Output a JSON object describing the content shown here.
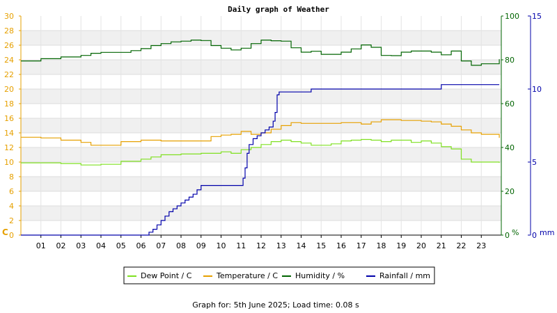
{
  "chart_data": {
    "type": "line",
    "title": "Daily graph of Weather",
    "x_ticks": [
      "01",
      "02",
      "03",
      "04",
      "05",
      "06",
      "07",
      "08",
      "09",
      "10",
      "11",
      "12",
      "13",
      "14",
      "15",
      "16",
      "17",
      "18",
      "19",
      "20",
      "21",
      "22",
      "23"
    ],
    "xlim": [
      0,
      24
    ],
    "axes": {
      "left": {
        "unit": "C",
        "ylim": [
          0,
          30
        ],
        "ticks": [
          "0",
          "2",
          "4",
          "6",
          "8",
          "10",
          "12",
          "14",
          "16",
          "18",
          "20",
          "22",
          "24",
          "26",
          "28",
          "30"
        ]
      },
      "humidity": {
        "unit": "%",
        "ylim": [
          0,
          100
        ],
        "ticks": [
          "0",
          "20",
          "40",
          "60",
          "80",
          "100"
        ]
      },
      "rainfall": {
        "unit": "mm",
        "ylim": [
          0,
          15
        ],
        "ticks": [
          "0",
          "5",
          "10",
          "15"
        ]
      }
    },
    "grid": "horizontal-bands",
    "legend_position": "bottom",
    "series": [
      {
        "name": "Dew Point / C",
        "color": "#7fe020",
        "axis": "left",
        "x": [
          0,
          1,
          2,
          3,
          4,
          5,
          6,
          6.5,
          7,
          8,
          9,
          10,
          10.5,
          11,
          11.5,
          12,
          12.5,
          13,
          13.5,
          14,
          14.5,
          15,
          15.5,
          16,
          16.5,
          17,
          17.5,
          18,
          18.5,
          19,
          19.5,
          20,
          20.5,
          21,
          21.5,
          22,
          22.5,
          23,
          23.9
        ],
        "y": [
          9.9,
          9.9,
          9.8,
          9.6,
          9.7,
          10.1,
          10.4,
          10.7,
          11.0,
          11.1,
          11.2,
          11.4,
          11.2,
          11.7,
          12.0,
          12.4,
          12.8,
          13.0,
          12.8,
          12.6,
          12.3,
          12.3,
          12.5,
          12.9,
          13.0,
          13.1,
          13.0,
          12.8,
          13.0,
          13.0,
          12.7,
          12.9,
          12.6,
          12.1,
          11.8,
          10.4,
          10.0,
          10.0,
          9.9
        ]
      },
      {
        "name": "Temperature / C",
        "color": "#e6a000",
        "axis": "left",
        "x": [
          0,
          1,
          2,
          3,
          3.5,
          4,
          5,
          6,
          7,
          8,
          9,
          9.5,
          10,
          10.5,
          11,
          11.5,
          12,
          12.5,
          13,
          13.5,
          14,
          15,
          16,
          16.5,
          17,
          17.5,
          18,
          19,
          20,
          20.5,
          21,
          21.5,
          22,
          22.5,
          23,
          23.9
        ],
        "y": [
          13.4,
          13.3,
          13.0,
          12.7,
          12.3,
          12.3,
          12.8,
          13.0,
          12.9,
          12.9,
          12.9,
          13.5,
          13.7,
          13.8,
          14.2,
          13.8,
          14.0,
          14.5,
          15.0,
          15.4,
          15.3,
          15.3,
          15.4,
          15.4,
          15.2,
          15.5,
          15.8,
          15.7,
          15.6,
          15.5,
          15.2,
          14.9,
          14.4,
          14.0,
          13.8,
          13.3
        ]
      },
      {
        "name": "Humidity / %",
        "color": "#006400",
        "axis": "humidity",
        "x": [
          0,
          0.5,
          1,
          2,
          3,
          3.5,
          4,
          5,
          5.5,
          6,
          6.5,
          7,
          7.5,
          8,
          8.5,
          9,
          9.5,
          10,
          10.5,
          11,
          11.5,
          12,
          12.5,
          13,
          13.5,
          14,
          14.5,
          15,
          15.5,
          16,
          16.5,
          17,
          17.5,
          18,
          18.5,
          19,
          19.5,
          20,
          20.5,
          21,
          21.5,
          22,
          22.5,
          23,
          23.9
        ],
        "y": [
          79.5,
          79.5,
          80.5,
          81.3,
          82.0,
          83.0,
          83.4,
          83.4,
          84.2,
          85.1,
          86.5,
          87.4,
          88.2,
          88.5,
          89.0,
          88.8,
          86.5,
          85.3,
          84.5,
          85.3,
          87.4,
          89.0,
          88.7,
          88.5,
          85.5,
          83.5,
          83.9,
          82.5,
          82.5,
          83.5,
          85.0,
          86.8,
          85.7,
          82.0,
          81.9,
          83.5,
          84.0,
          84.0,
          83.5,
          82.3,
          84.0,
          79.5,
          77.5,
          78.2,
          80.3
        ]
      },
      {
        "name": "Rainfall / mm",
        "color": "#0000aa",
        "axis": "rainfall",
        "x": [
          0,
          6.3,
          6.4,
          6.6,
          6.8,
          7.0,
          7.2,
          7.4,
          7.6,
          7.8,
          8.0,
          8.2,
          8.4,
          8.6,
          8.8,
          9.0,
          10.5,
          11.0,
          11.1,
          11.2,
          11.3,
          11.4,
          11.6,
          11.8,
          12.0,
          12.2,
          12.4,
          12.6,
          12.7,
          12.8,
          12.9,
          13.5,
          14.0,
          14.5,
          15,
          16,
          17,
          18,
          19,
          20,
          21,
          22,
          23,
          23.9
        ],
        "y": [
          0,
          0,
          0.2,
          0.4,
          0.7,
          1.0,
          1.3,
          1.6,
          1.8,
          2.0,
          2.2,
          2.4,
          2.6,
          2.8,
          3.1,
          3.4,
          3.4,
          3.4,
          3.9,
          4.6,
          5.6,
          6.2,
          6.6,
          6.8,
          7.0,
          7.2,
          7.4,
          7.8,
          8.4,
          9.6,
          9.8,
          9.8,
          9.8,
          10.0,
          10.0,
          10.0,
          10.0,
          10.0,
          10.0,
          10.0,
          10.3,
          10.3,
          10.3,
          10.3
        ]
      }
    ]
  },
  "footer_text": "Graph for: 5th June 2025; Load time: 0.08 s"
}
